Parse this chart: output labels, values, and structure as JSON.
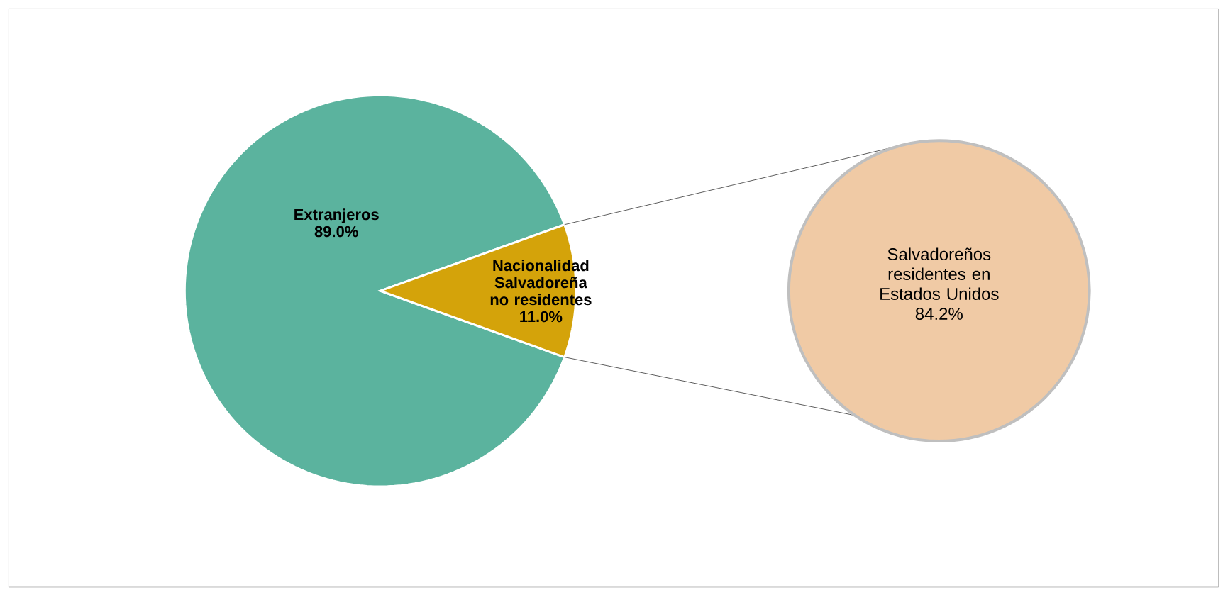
{
  "chart_data": [
    {
      "type": "pie",
      "categories": [
        "Extranjeros",
        "Nacionalidad Salvadoreña no residentes"
      ],
      "values": [
        89.0,
        11.0
      ],
      "value_labels": [
        "89.0%",
        "11.0%"
      ],
      "colors": [
        "#5bb39e",
        "#d4a30a"
      ]
    },
    {
      "type": "other",
      "categories": [
        "Salvadoreños residentes en Estados Unidos"
      ],
      "values": [
        84.2
      ],
      "value_labels": [
        "84.2%"
      ],
      "colors": [
        "#f0caa5"
      ]
    }
  ]
}
